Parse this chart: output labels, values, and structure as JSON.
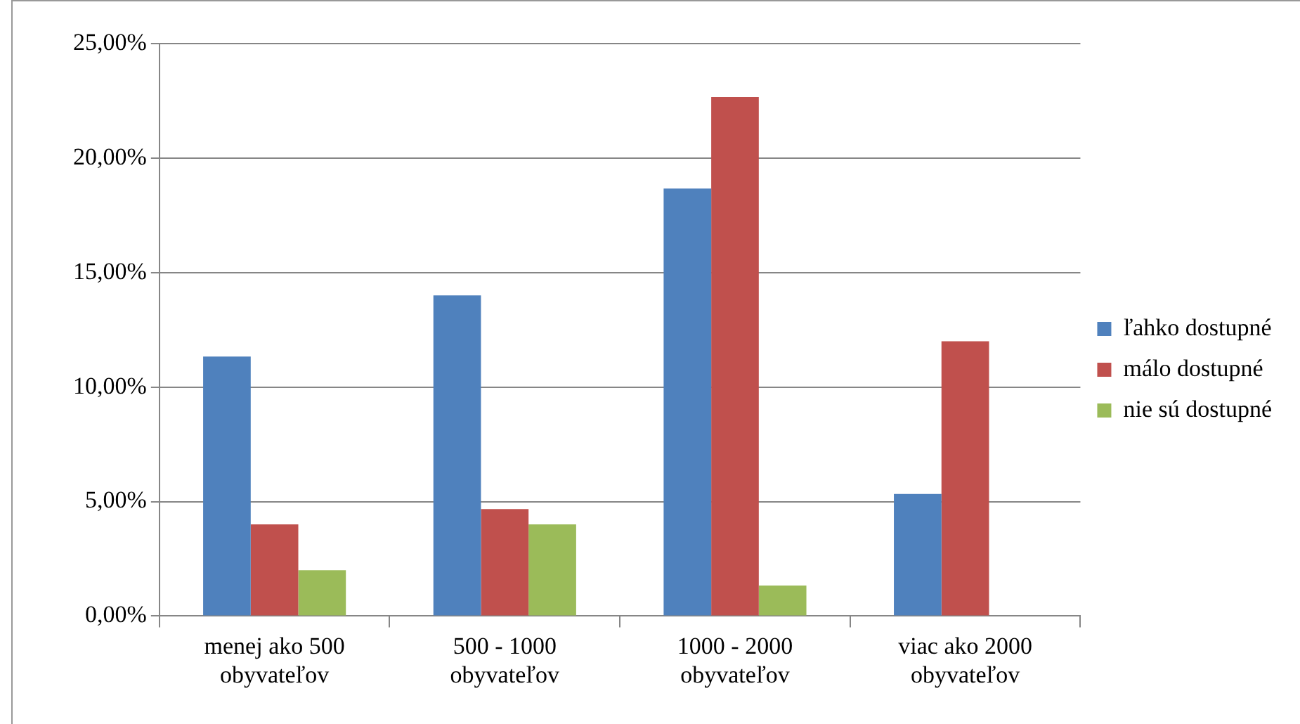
{
  "chart_data": {
    "type": "bar",
    "categories": [
      "menej ako 500 obyvateľov",
      "500 - 1000 obyvateľov",
      "1000 - 2000 obyvateľov",
      "viac ako 2000 obyvateľov"
    ],
    "series": [
      {
        "name": "ľahko dostupné",
        "color": "#4f81bd",
        "values": [
          11.33,
          14.0,
          18.67,
          5.33
        ]
      },
      {
        "name": "málo dostupné",
        "color": "#c0504d",
        "values": [
          4.0,
          4.67,
          22.67,
          12.0
        ]
      },
      {
        "name": "nie sú dostupné",
        "color": "#9bbb59",
        "values": [
          2.0,
          4.0,
          1.33,
          0
        ]
      }
    ],
    "ylim": [
      0,
      25
    ],
    "yticks": [
      {
        "value": 0,
        "label": "0,00%"
      },
      {
        "value": 5,
        "label": "5,00%"
      },
      {
        "value": 10,
        "label": "10,00%"
      },
      {
        "value": 15,
        "label": "15,00%"
      },
      {
        "value": 20,
        "label": "20,00%"
      },
      {
        "value": 25,
        "label": "25,00%"
      }
    ],
    "grid": "y",
    "legend": "right"
  }
}
